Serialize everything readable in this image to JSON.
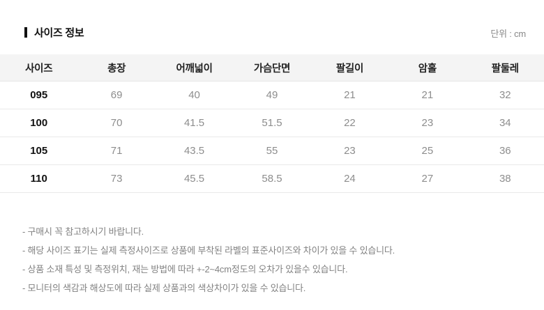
{
  "section": {
    "title": "사이즈 정보",
    "unit_label": "단위 : cm"
  },
  "table": {
    "columns": [
      "사이즈",
      "총장",
      "어깨넓이",
      "가슴단면",
      "팔길이",
      "암홀",
      "팔둘레"
    ],
    "rows": [
      [
        "095",
        "69",
        "40",
        "49",
        "21",
        "21",
        "32"
      ],
      [
        "100",
        "70",
        "41.5",
        "51.5",
        "22",
        "23",
        "34"
      ],
      [
        "105",
        "71",
        "43.5",
        "55",
        "23",
        "25",
        "36"
      ],
      [
        "110",
        "73",
        "45.5",
        "58.5",
        "24",
        "27",
        "38"
      ]
    ]
  },
  "notes": [
    "- 구매시 꼭 참고하시기 바랍니다.",
    "- 해당 사이즈 표기는 실제 측정사이즈로 상품에 부착된 라벨의 표준사이즈와 차이가 있을 수 있습니다.",
    "- 상품 소재 특성 및 측정위치, 재는 방법에 따라 +-2~4cm정도의 오차가 있을수 있습니다.",
    "- 모니터의 색감과 해상도에 따라 실제 상품과의 색상차이가 있을 수 있습니다."
  ],
  "colors": {
    "header_bg": "#f4f4f4",
    "row_border": "#e9e9e9",
    "data_text": "#8d8d8d",
    "title_text": "#111111",
    "note_text": "#828282"
  }
}
